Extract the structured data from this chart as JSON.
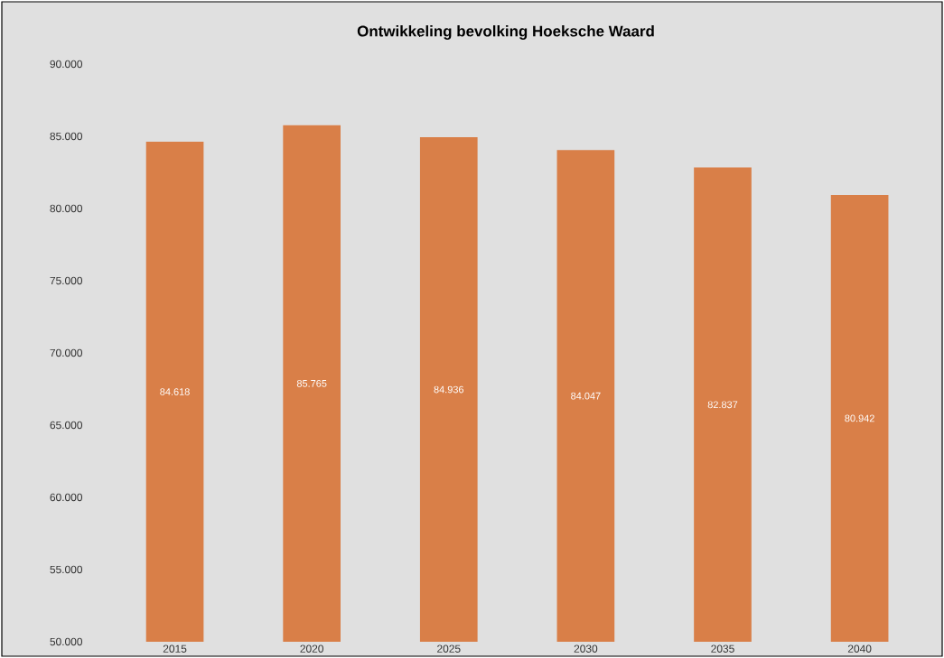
{
  "chart_data": {
    "type": "bar",
    "title": "Ontwikkeling bevolking Hoeksche Waard",
    "categories": [
      "2015",
      "2020",
      "2025",
      "2030",
      "2035",
      "2040"
    ],
    "values": [
      84618,
      85765,
      84936,
      84047,
      82837,
      80942
    ],
    "value_labels": [
      "84.618",
      "85.765",
      "84.936",
      "84.047",
      "82.837",
      "80.942"
    ],
    "color": "#d97f48",
    "ylim": [
      50000,
      90000
    ],
    "yticks": [
      {
        "value": 50000,
        "label": "50.000"
      },
      {
        "value": 55000,
        "label": "55.000"
      },
      {
        "value": 60000,
        "label": "60.000"
      },
      {
        "value": 65000,
        "label": "65.000"
      },
      {
        "value": 70000,
        "label": "70.000"
      },
      {
        "value": 75000,
        "label": "75.000"
      },
      {
        "value": 80000,
        "label": "80.000"
      },
      {
        "value": 85000,
        "label": "85.000"
      },
      {
        "value": 90000,
        "label": "90.000"
      }
    ],
    "grid": false
  }
}
